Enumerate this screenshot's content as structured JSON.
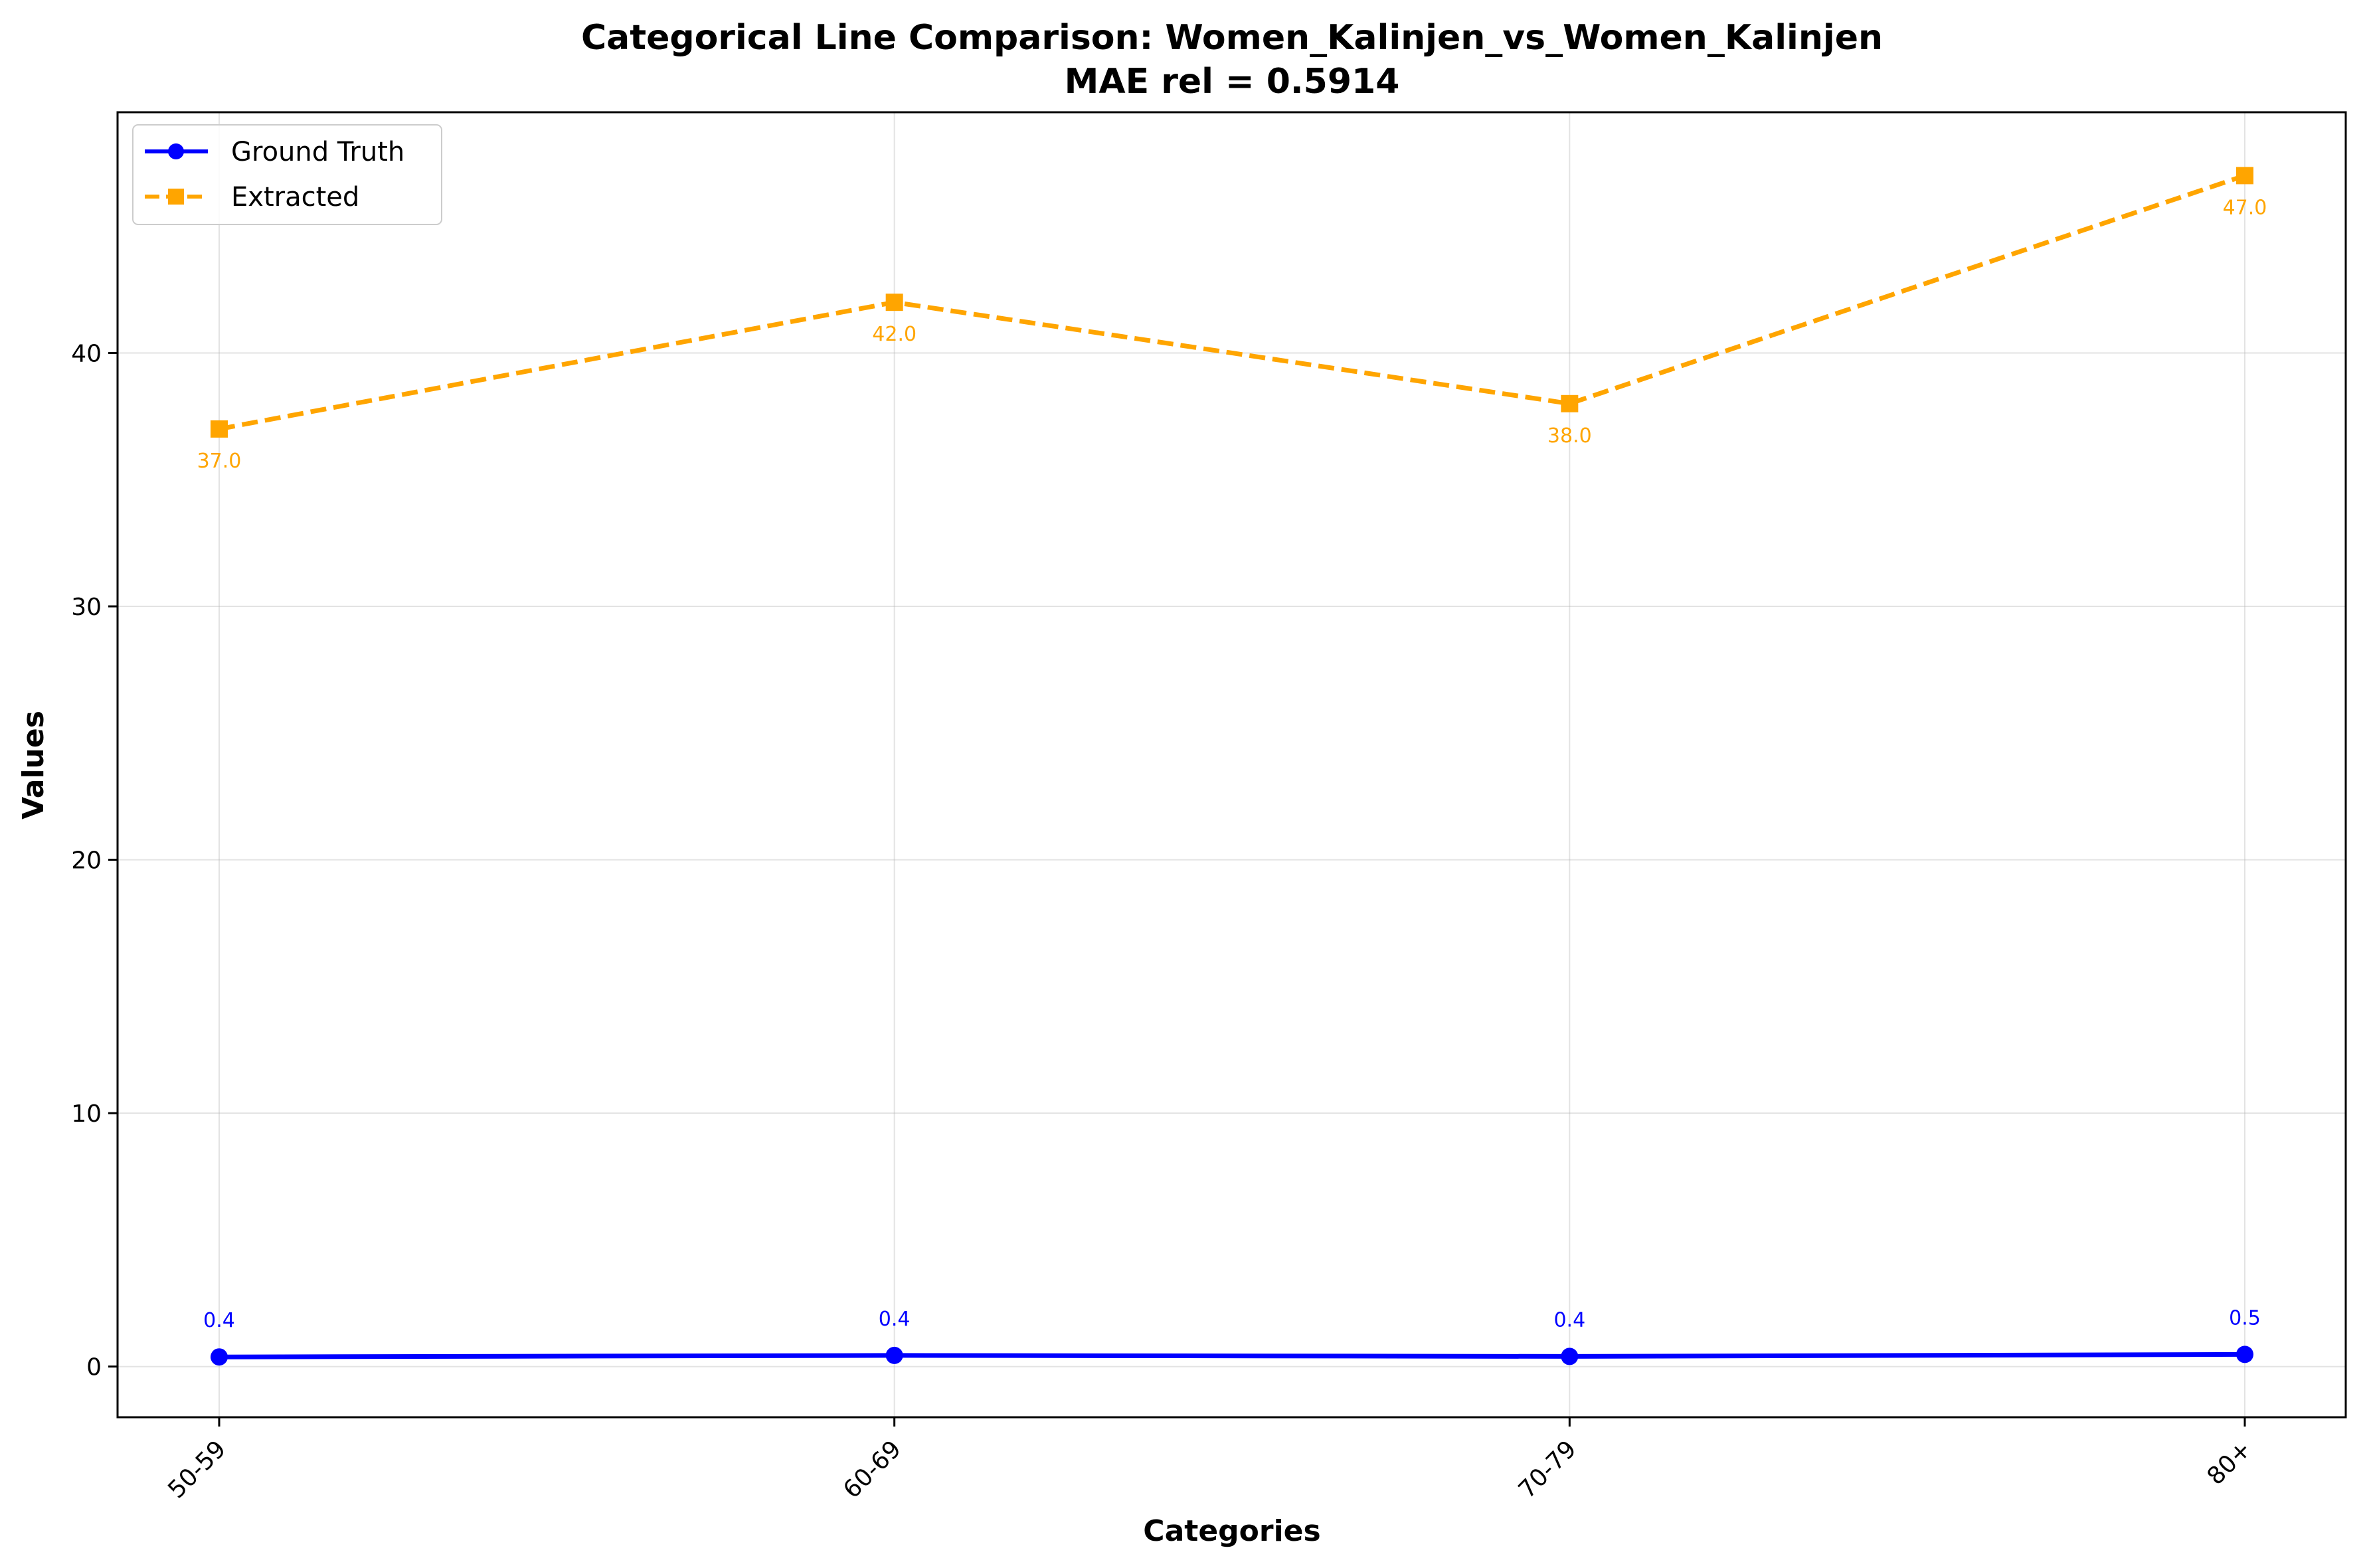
{
  "chart_data": {
    "type": "line",
    "title": "Categorical Line Comparison: Women_Kalinjen_vs_Women_Kalinjen",
    "subtitle": "MAE rel = 0.5914",
    "xlabel": "Categories",
    "ylabel": "Values",
    "categories": [
      "50-59",
      "60-69",
      "70-79",
      "80+"
    ],
    "ylim": [
      -2,
      49.5
    ],
    "yticks": [
      0,
      10,
      20,
      30,
      40
    ],
    "grid": true,
    "legend_position": "top-left",
    "series": [
      {
        "name": "Ground Truth",
        "values": [
          0.38,
          0.44,
          0.4,
          0.48
        ],
        "labels": [
          "0.4",
          "0.4",
          "0.4",
          "0.5"
        ],
        "color": "#0000ff",
        "line_style": "solid",
        "marker": "circle"
      },
      {
        "name": "Extracted",
        "values": [
          37.0,
          42.0,
          38.0,
          47.0
        ],
        "labels": [
          "37.0",
          "42.0",
          "38.0",
          "47.0"
        ],
        "color": "#ffa500",
        "line_style": "dashed",
        "marker": "square"
      }
    ]
  }
}
